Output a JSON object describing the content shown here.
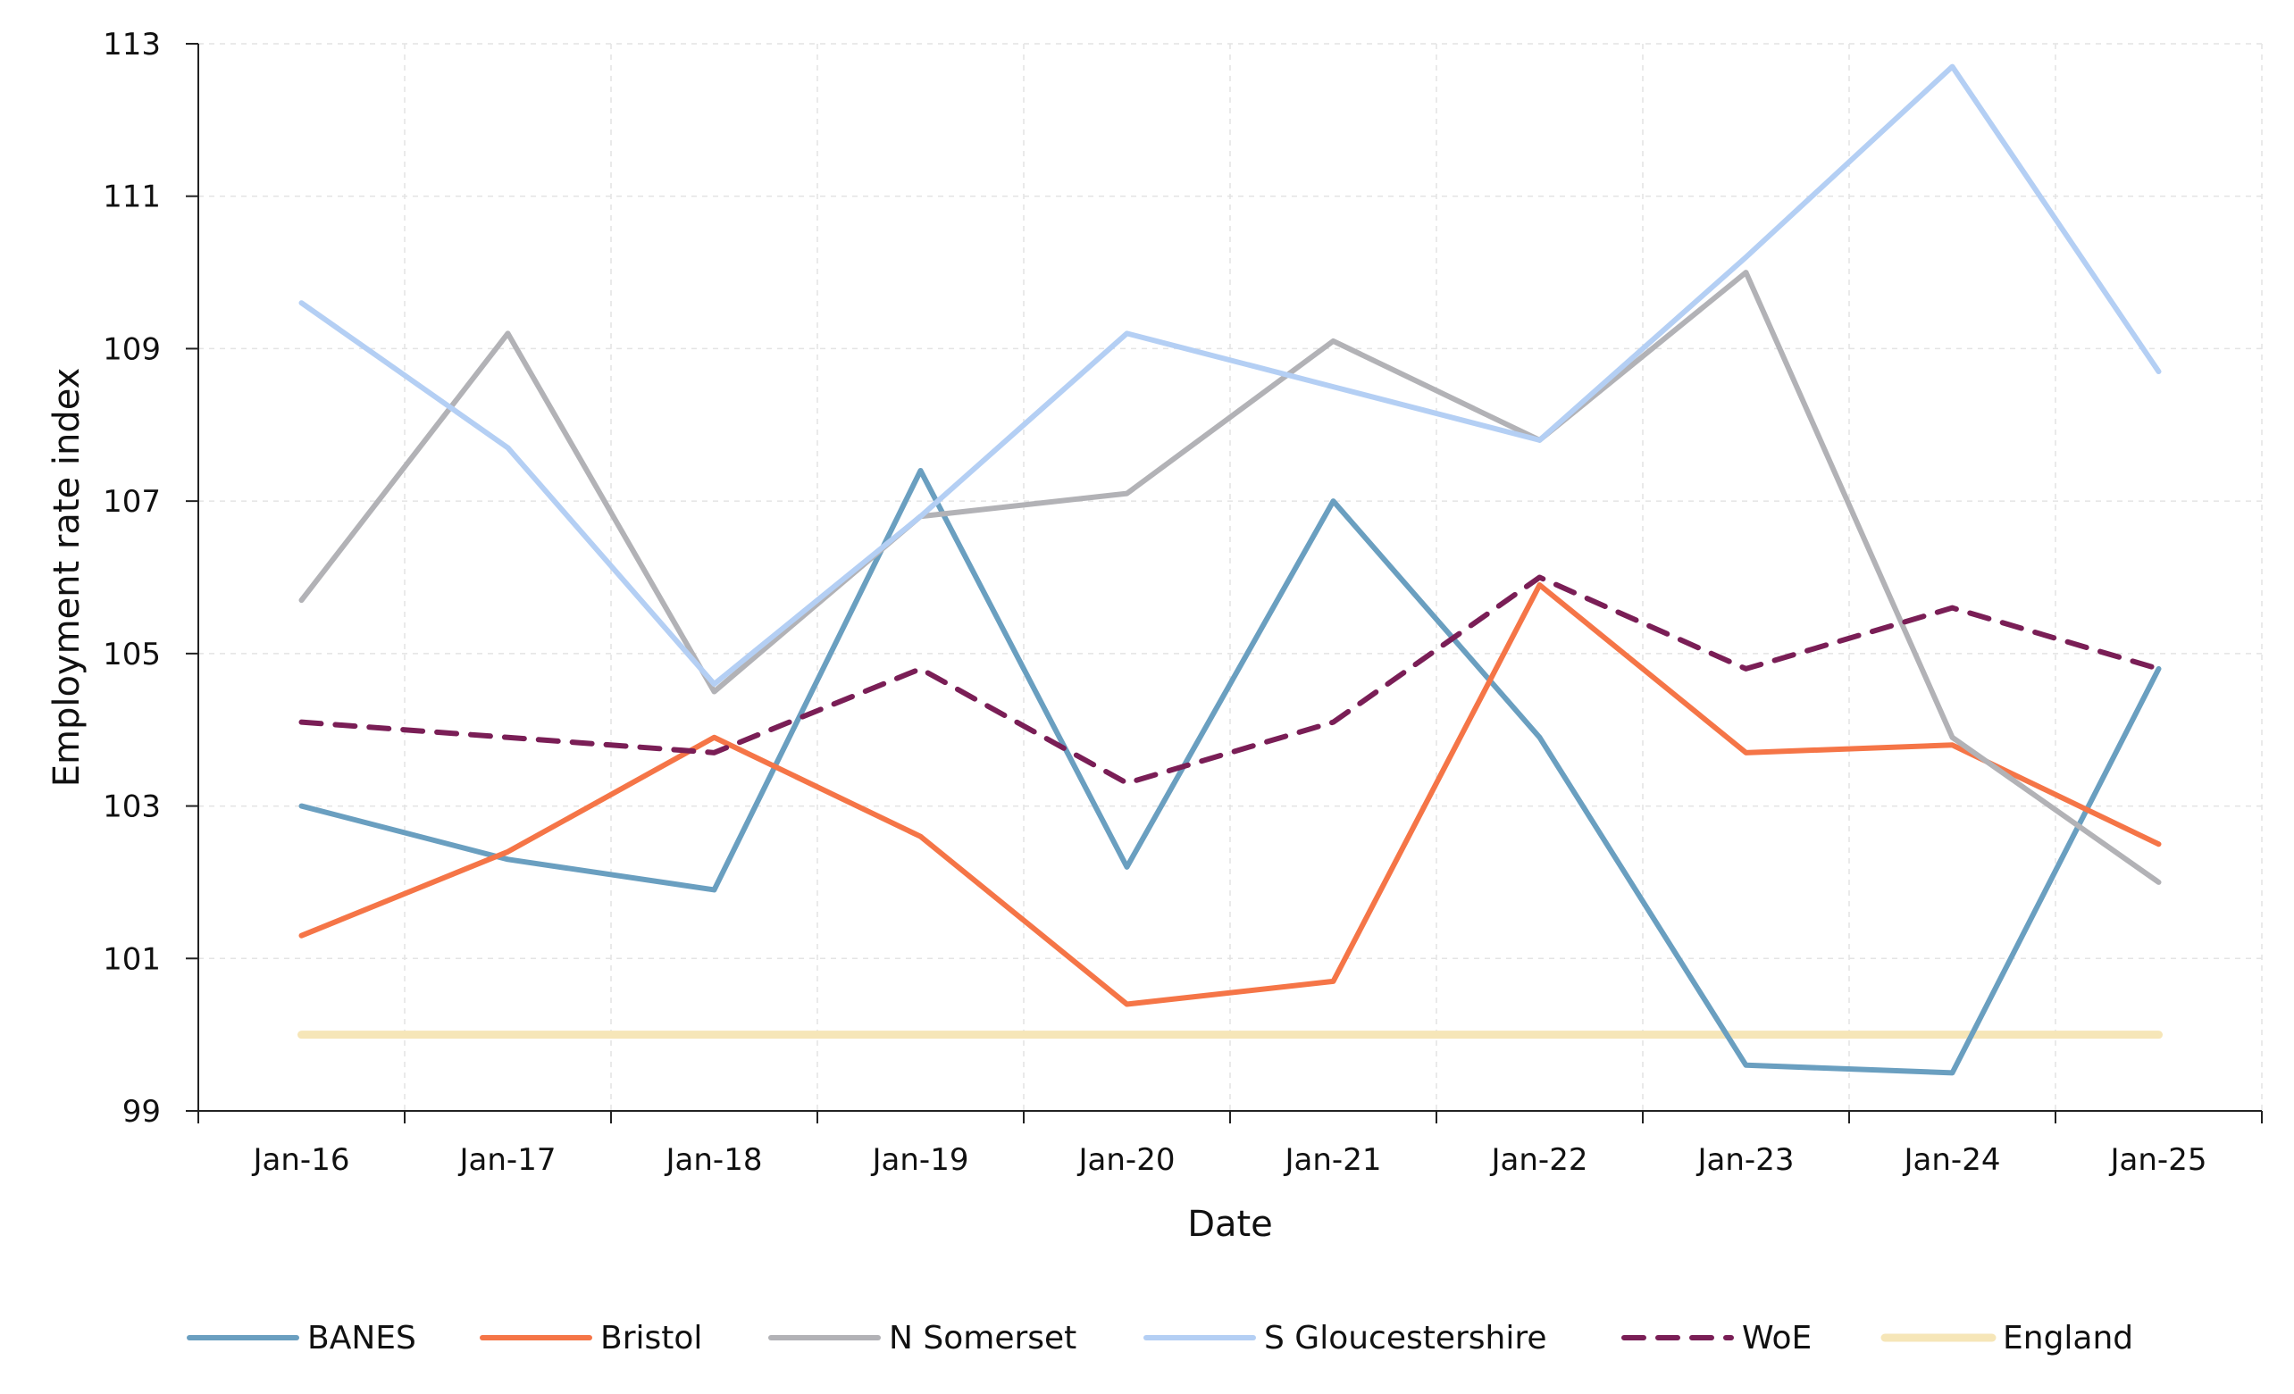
{
  "chart_data": {
    "type": "line",
    "title": "",
    "xlabel": "Date",
    "ylabel": "Employment rate index",
    "categories": [
      "Jan-16",
      "Jan-17",
      "Jan-18",
      "Jan-19",
      "Jan-20",
      "Jan-21",
      "Jan-22",
      "Jan-23",
      "Jan-24",
      "Jan-25"
    ],
    "ylim": [
      99,
      113
    ],
    "yticks": [
      99,
      101,
      103,
      105,
      107,
      109,
      111,
      113
    ],
    "grid": true,
    "legend": "bottom",
    "series": [
      {
        "name": "BANES",
        "color": "#6a9fc0",
        "dash": "solid",
        "values": [
          103.0,
          102.3,
          101.9,
          107.4,
          102.2,
          107.0,
          103.9,
          99.6,
          99.5,
          104.8
        ]
      },
      {
        "name": "Bristol",
        "color": "#f57547",
        "dash": "solid",
        "values": [
          101.3,
          102.4,
          103.9,
          102.6,
          100.4,
          100.7,
          105.9,
          103.7,
          103.8,
          102.5
        ]
      },
      {
        "name": "N Somerset",
        "color": "#b2b2b6",
        "dash": "solid",
        "values": [
          105.7,
          109.2,
          104.5,
          106.8,
          107.1,
          109.1,
          107.8,
          110.0,
          103.9,
          102.0
        ]
      },
      {
        "name": "S Gloucestershire",
        "color": "#b4cff4",
        "dash": "solid",
        "values": [
          109.6,
          107.7,
          104.6,
          106.8,
          109.2,
          108.5,
          107.8,
          110.2,
          112.7,
          108.7
        ]
      },
      {
        "name": "WoE",
        "color": "#7a1e56",
        "dash": "dashed",
        "values": [
          104.1,
          103.9,
          103.7,
          104.8,
          103.3,
          104.1,
          106.0,
          104.8,
          105.6,
          104.8
        ]
      },
      {
        "name": "England",
        "color": "#f6e6b8",
        "dash": "solid",
        "values": [
          100.0,
          100.0,
          100.0,
          100.0,
          100.0,
          100.0,
          100.0,
          100.0,
          100.0,
          100.0
        ]
      }
    ]
  }
}
